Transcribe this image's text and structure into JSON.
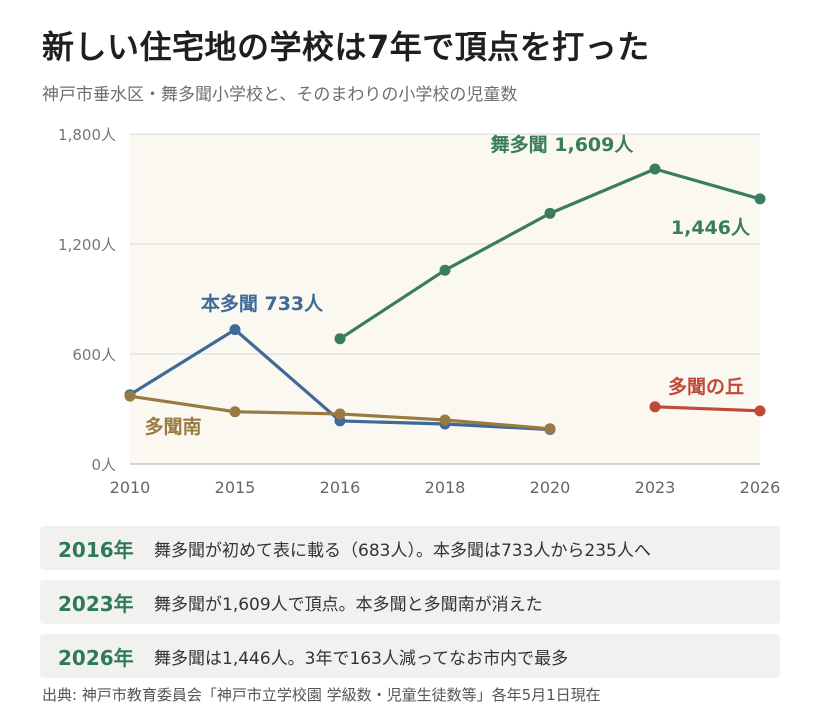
{
  "header": {
    "title": "新しい住宅地の学校は7年で頂点を打った",
    "subtitle": "神戸市垂水区・舞多聞小学校と、そのまわりの小学校の児童数"
  },
  "chart_data": {
    "type": "line",
    "categories": [
      "2010",
      "2015",
      "2016",
      "2018",
      "2020",
      "2023",
      "2026"
    ],
    "y_tick_labels": [
      "0人",
      "600人",
      "1,200人",
      "1,800人"
    ],
    "y_ticks": [
      0,
      600,
      1200,
      1800
    ],
    "ylim": [
      0,
      1800
    ],
    "grid": "horizontal",
    "background_color": "#faf8f1",
    "series": [
      {
        "name": "舞多聞",
        "color": "#3a7d5c",
        "values": [
          null,
          null,
          683,
          1057,
          1367,
          1609,
          1446
        ]
      },
      {
        "name": "本多聞",
        "color": "#3d6a96",
        "values": [
          378,
          733,
          235,
          218,
          188,
          null,
          null
        ]
      },
      {
        "name": "多聞南",
        "color": "#9a7a43",
        "values": [
          370,
          285,
          273,
          240,
          192,
          null,
          null
        ]
      },
      {
        "name": "多聞の丘",
        "color": "#c04a37",
        "values": [
          null,
          null,
          null,
          null,
          null,
          312,
          290
        ]
      }
    ],
    "annotations": [
      {
        "text": "舞多聞 1,609人",
        "color": "#3a7d5c"
      },
      {
        "text": "1,446人",
        "color": "#3a7d5c"
      },
      {
        "text": "本多聞 733人",
        "color": "#3d6a96"
      },
      {
        "text": "多聞南",
        "color": "#9a7a43"
      },
      {
        "text": "多聞の丘",
        "color": "#c04a37"
      }
    ]
  },
  "notes": [
    {
      "year": "2016年",
      "text": "舞多聞が初めて表に載る（683人）。本多聞は733人から235人へ"
    },
    {
      "year": "2023年",
      "text": "舞多聞が1,609人で頂点。本多聞と多聞南が消えた"
    },
    {
      "year": "2026年",
      "text": "舞多聞は1,446人。3年で163人減ってなお市内で最多"
    }
  ],
  "source": "出典: 神戸市教育委員会「神戸市立学校園 学級数・児童生徒数等」各年5月1日現在"
}
